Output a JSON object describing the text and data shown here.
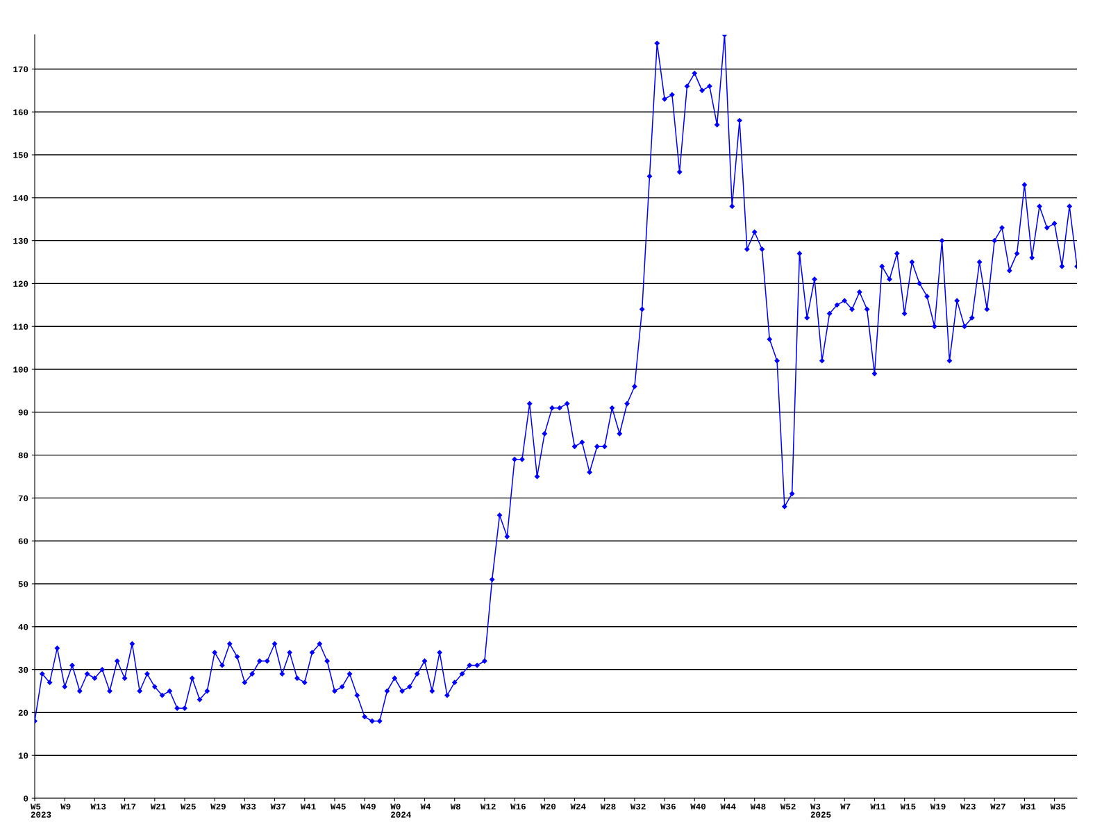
{
  "chart_data": {
    "type": "line",
    "categories": [
      "W5\n2023",
      null,
      null,
      null,
      "W9",
      null,
      null,
      null,
      "W13",
      null,
      null,
      null,
      "W17",
      null,
      null,
      null,
      "W21",
      null,
      null,
      null,
      "W25",
      null,
      null,
      null,
      "W29",
      null,
      null,
      null,
      "W33",
      null,
      null,
      null,
      "W37",
      null,
      null,
      null,
      "W41",
      null,
      null,
      null,
      "W45",
      null,
      null,
      null,
      "W49",
      null,
      null,
      null,
      "W0\n2024",
      null,
      null,
      null,
      "W4",
      null,
      null,
      null,
      "W8",
      null,
      null,
      null,
      "W12",
      null,
      null,
      null,
      "W16",
      null,
      null,
      null,
      "W20",
      null,
      null,
      null,
      "W24",
      null,
      null,
      null,
      "W28",
      null,
      null,
      null,
      "W32",
      null,
      null,
      null,
      "W36",
      null,
      null,
      null,
      "W40",
      null,
      null,
      null,
      "W44",
      null,
      null,
      null,
      "W48",
      null,
      null,
      null,
      "W52",
      null,
      null,
      null,
      "W3\n2025",
      null,
      null,
      null,
      "W7",
      null,
      null,
      null,
      "W11",
      null,
      null,
      null,
      "W15",
      null,
      null,
      null,
      "W19",
      null,
      null,
      null,
      "W23",
      null,
      null,
      null,
      "W27",
      null,
      null,
      null,
      "W31",
      null,
      null,
      null,
      "W35",
      null,
      null,
      null
    ],
    "series": [
      {
        "color": "#0000ff",
        "values": [
          18,
          29,
          27,
          35,
          26,
          31,
          25,
          29,
          28,
          30,
          25,
          32,
          28,
          36,
          25,
          29,
          26,
          24,
          25,
          21,
          21,
          28,
          23,
          25,
          34,
          31,
          36,
          33,
          27,
          29,
          32,
          32,
          36,
          29,
          34,
          28,
          27,
          34,
          36,
          32,
          25,
          26,
          29,
          24,
          19,
          18,
          18,
          25,
          28,
          25,
          26,
          29,
          32,
          25,
          34,
          24,
          27,
          29,
          31,
          31,
          32,
          51,
          66,
          61,
          79,
          79,
          92,
          75,
          85,
          91,
          91,
          92,
          82,
          83,
          76,
          82,
          82,
          91,
          85,
          92,
          96,
          114,
          145,
          176,
          163,
          164,
          146,
          166,
          169,
          165,
          166,
          157,
          178,
          138,
          158,
          128,
          132,
          128,
          107,
          102,
          68,
          71,
          127,
          112,
          121,
          102,
          113,
          115,
          116,
          114,
          118,
          114,
          99,
          124,
          121,
          127,
          113,
          125,
          120,
          117,
          110,
          130,
          102,
          116,
          110,
          112,
          125,
          114,
          130,
          133,
          123,
          127,
          143,
          126,
          138,
          133,
          134,
          124,
          138,
          124
        ]
      }
    ],
    "ylim": [
      0,
      178
    ],
    "yticks": [
      0,
      10,
      20,
      30,
      40,
      50,
      60,
      70,
      80,
      90,
      100,
      110,
      120,
      130,
      140,
      150,
      160,
      170
    ],
    "grid": "y",
    "marker": "diamond",
    "line_style": "solid"
  }
}
